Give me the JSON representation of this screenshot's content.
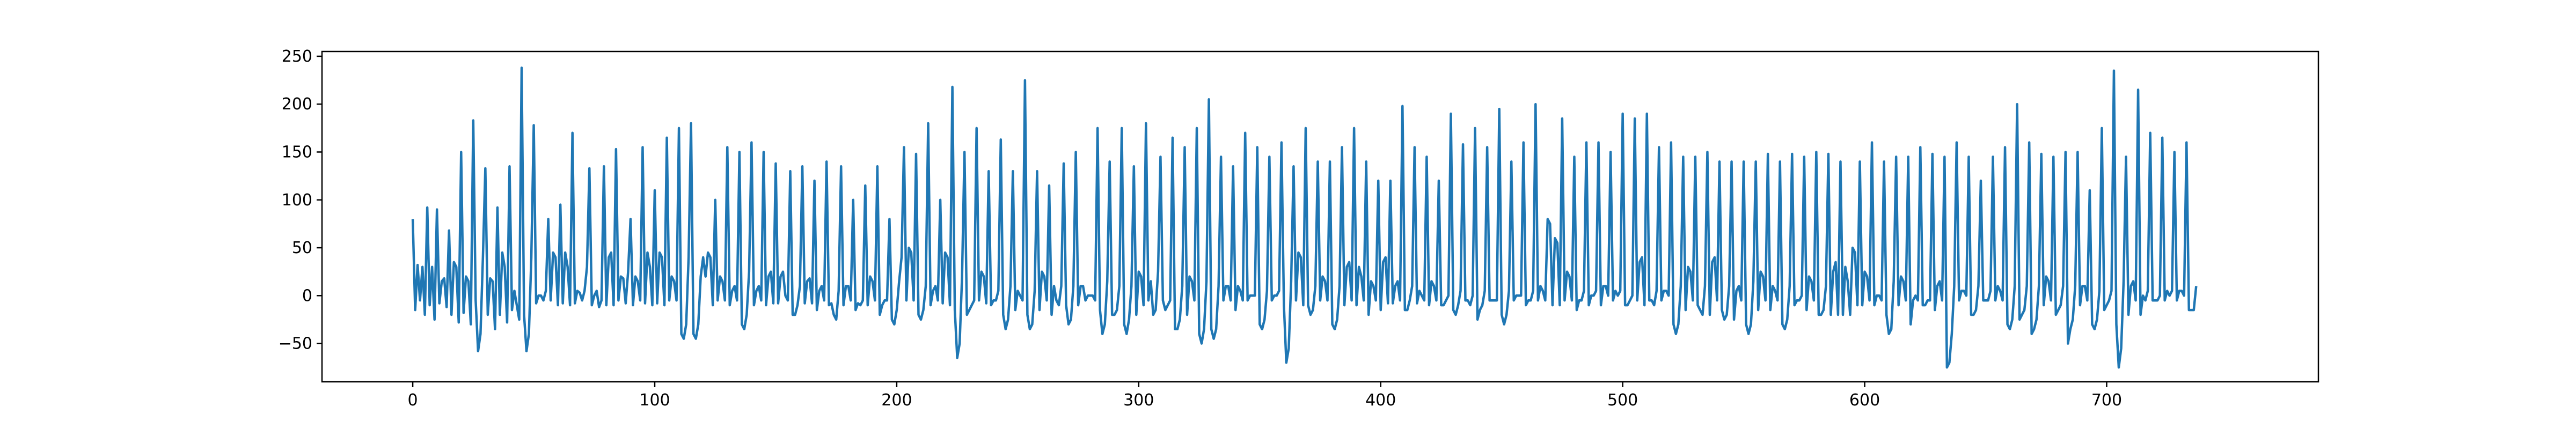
{
  "chart_data": {
    "type": "line",
    "title": "",
    "xlabel": "",
    "ylabel": "",
    "xlim": [
      -37.5,
      787.5
    ],
    "ylim": [
      -90,
      255
    ],
    "xticks": [
      0,
      100,
      200,
      300,
      400,
      500,
      600,
      700
    ],
    "yticks": [
      -50,
      0,
      50,
      100,
      150,
      200,
      250
    ],
    "xtick_labels": [
      "0",
      "100",
      "200",
      "300",
      "400",
      "500",
      "600",
      "700"
    ],
    "ytick_labels": [
      "−50",
      "0",
      "50",
      "100",
      "150",
      "200",
      "250"
    ],
    "grid": false,
    "legend": "none",
    "line_color": "#1f77b4",
    "series": [
      {
        "x_start": 0,
        "x_step": 1,
        "values": [
          80,
          -15,
          32,
          -5,
          30,
          -20,
          92,
          -10,
          30,
          -25,
          90,
          -8,
          15,
          18,
          -12,
          68,
          -20,
          35,
          30,
          -28,
          150,
          -18,
          20,
          15,
          -30,
          183,
          -5,
          -58,
          -40,
          40,
          133,
          -20,
          18,
          15,
          -35,
          92,
          -20,
          45,
          30,
          -28,
          135,
          -15,
          5,
          -10,
          -25,
          238,
          -20,
          -58,
          -40,
          40,
          178,
          -8,
          0,
          0,
          -5,
          5,
          80,
          -5,
          45,
          40,
          -10,
          95,
          -8,
          45,
          30,
          -10,
          170,
          -8,
          5,
          3,
          -5,
          5,
          30,
          133,
          -10,
          0,
          5,
          -12,
          -5,
          135,
          -10,
          40,
          45,
          -10,
          153,
          -5,
          20,
          18,
          -8,
          25,
          80,
          -10,
          20,
          15,
          -5,
          155,
          -8,
          45,
          30,
          -10,
          110,
          -8,
          45,
          40,
          -10,
          165,
          -5,
          20,
          15,
          -5,
          175,
          -40,
          -45,
          -30,
          40,
          180,
          -40,
          -45,
          -30,
          20,
          40,
          20,
          45,
          40,
          -10,
          100,
          -5,
          20,
          15,
          -5,
          155,
          -10,
          5,
          10,
          -5,
          150,
          -30,
          -35,
          -20,
          25,
          160,
          -10,
          5,
          10,
          -5,
          150,
          -10,
          20,
          25,
          -8,
          138,
          -8,
          20,
          25,
          0,
          -5,
          130,
          -20,
          -20,
          -10,
          10,
          135,
          -8,
          15,
          18,
          -8,
          120,
          -15,
          5,
          10,
          -5,
          140,
          -10,
          -8,
          -20,
          -25,
          5,
          135,
          -10,
          10,
          10,
          -5,
          100,
          -15,
          -8,
          -10,
          -5,
          115,
          -10,
          20,
          15,
          -5,
          135,
          -20,
          -10,
          -5,
          -5,
          80,
          -25,
          -30,
          -15,
          15,
          40,
          155,
          -5,
          50,
          45,
          -5,
          148,
          -20,
          -25,
          -15,
          10,
          180,
          -10,
          5,
          10,
          -5,
          100,
          -8,
          45,
          40,
          -10,
          218,
          -15,
          -65,
          -50,
          20,
          150,
          -20,
          -15,
          -10,
          -5,
          175,
          -5,
          25,
          20,
          -8,
          130,
          -10,
          -5,
          -5,
          5,
          163,
          -20,
          -35,
          -25,
          10,
          130,
          -15,
          5,
          0,
          -5,
          225,
          -20,
          -35,
          -30,
          5,
          130,
          -15,
          25,
          20,
          -5,
          115,
          -20,
          10,
          -5,
          -10,
          10,
          138,
          -10,
          -30,
          -25,
          10,
          150,
          -10,
          10,
          10,
          -5,
          0,
          0,
          0,
          -5,
          175,
          -15,
          -40,
          -30,
          15,
          140,
          -20,
          -20,
          -15,
          10,
          175,
          -30,
          -40,
          -25,
          10,
          135,
          -20,
          25,
          20,
          -10,
          180,
          -5,
          15,
          -20,
          -15,
          25,
          145,
          -5,
          -15,
          -10,
          -5,
          165,
          -35,
          -35,
          -25,
          10,
          155,
          -20,
          20,
          15,
          -5,
          175,
          -40,
          -50,
          -35,
          15,
          205,
          -35,
          -45,
          -35,
          10,
          145,
          -5,
          10,
          10,
          -5,
          135,
          -15,
          10,
          5,
          -5,
          170,
          -5,
          0,
          0,
          0,
          155,
          -30,
          -35,
          -25,
          5,
          145,
          -5,
          0,
          0,
          5,
          160,
          -10,
          -70,
          -55,
          15,
          135,
          -5,
          45,
          40,
          -10,
          175,
          -10,
          -20,
          -15,
          10,
          140,
          -5,
          20,
          15,
          -5,
          140,
          -30,
          -35,
          -25,
          10,
          155,
          -10,
          30,
          35,
          -5,
          175,
          -10,
          30,
          20,
          -5,
          140,
          -20,
          15,
          10,
          -5,
          120,
          -15,
          35,
          40,
          -8,
          120,
          -8,
          10,
          15,
          -5,
          198,
          -15,
          -15,
          -5,
          10,
          155,
          -8,
          5,
          0,
          -5,
          145,
          -10,
          15,
          10,
          -5,
          120,
          -10,
          -10,
          -5,
          0,
          190,
          -15,
          -20,
          -10,
          5,
          158,
          -5,
          -5,
          -10,
          0,
          175,
          -25,
          -15,
          -10,
          5,
          155,
          -5,
          -5,
          -5,
          -5,
          195,
          -20,
          -30,
          -20,
          5,
          140,
          -5,
          0,
          0,
          0,
          160,
          -10,
          -5,
          -5,
          5,
          200,
          -5,
          10,
          5,
          -5,
          80,
          75,
          -10,
          60,
          55,
          -10,
          185,
          -5,
          25,
          20,
          -5,
          145,
          -15,
          -5,
          -5,
          5,
          160,
          -10,
          0,
          0,
          5,
          160,
          -10,
          10,
          10,
          0,
          150,
          -5,
          5,
          0,
          5,
          190,
          -10,
          -10,
          -5,
          0,
          185,
          -5,
          35,
          40,
          -10,
          190,
          -5,
          -5,
          -10,
          5,
          155,
          -5,
          5,
          5,
          0,
          160,
          -30,
          -40,
          -30,
          10,
          145,
          -15,
          30,
          25,
          -5,
          145,
          -10,
          -15,
          -20,
          10,
          150,
          -20,
          35,
          40,
          -5,
          140,
          -15,
          -25,
          -20,
          10,
          140,
          -25,
          5,
          10,
          -5,
          140,
          -30,
          -40,
          -30,
          15,
          140,
          -15,
          25,
          20,
          -5,
          148,
          -15,
          10,
          5,
          -5,
          140,
          -30,
          -35,
          -25,
          10,
          148,
          -10,
          -5,
          -5,
          0,
          145,
          -15,
          20,
          15,
          -5,
          150,
          -20,
          -20,
          -15,
          10,
          148,
          -20,
          25,
          35,
          -20,
          140,
          -20,
          30,
          15,
          -20,
          50,
          45,
          -10,
          140,
          -10,
          25,
          20,
          -5,
          160,
          -10,
          0,
          0,
          -5,
          140,
          -20,
          -40,
          -35,
          15,
          145,
          -10,
          20,
          15,
          -5,
          145,
          -30,
          -5,
          0,
          -5,
          155,
          -10,
          -10,
          -5,
          -5,
          148,
          -15,
          10,
          15,
          -5,
          145,
          -75,
          -70,
          -40,
          10,
          160,
          -5,
          5,
          5,
          0,
          145,
          -20,
          -20,
          -15,
          10,
          120,
          -5,
          -5,
          -5,
          5,
          145,
          -5,
          10,
          5,
          -5,
          155,
          -30,
          -35,
          -25,
          10,
          200,
          -25,
          -20,
          -15,
          10,
          160,
          -40,
          -35,
          -25,
          10,
          148,
          -10,
          20,
          15,
          -5,
          145,
          -20,
          -15,
          -10,
          10,
          150,
          -50,
          -35,
          -25,
          10,
          150,
          -10,
          10,
          10,
          -5,
          110,
          -30,
          -35,
          -25,
          5,
          175,
          -15,
          -10,
          -5,
          5,
          235,
          -30,
          -75,
          -55,
          15,
          145,
          -20,
          10,
          15,
          -5,
          215,
          -20,
          0,
          -5,
          5,
          170,
          -5,
          -5,
          -5,
          0,
          165,
          -5,
          5,
          0,
          5,
          150,
          -5,
          5,
          5,
          0,
          160,
          -15,
          -15,
          -15,
          10
        ],
        "line_color": "#1f77b4"
      }
    ]
  }
}
